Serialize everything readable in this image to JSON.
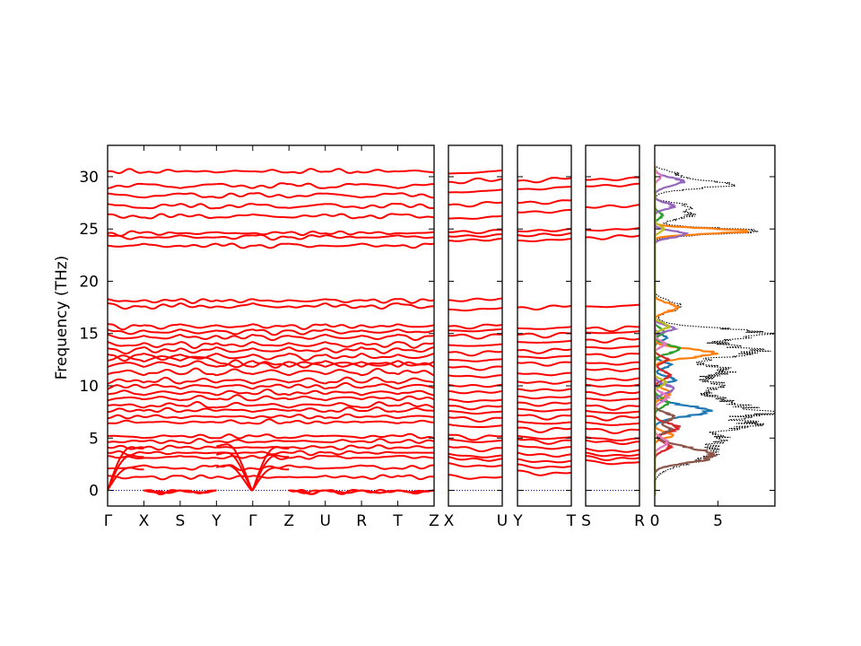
{
  "chart_data": {
    "type": "line",
    "ylabel": "Frequency (THz)",
    "ylim": [
      -1.5,
      33
    ],
    "yticks": [
      0,
      5,
      10,
      15,
      20,
      25,
      30
    ],
    "band_color": "#ff0000",
    "zero_line_color": "#0000cc",
    "panels": [
      {
        "id": "p1",
        "segments": [
          {
            "from": "Γ",
            "to": "X"
          },
          {
            "from": "X",
            "to": "S"
          },
          {
            "from": "S",
            "to": "Y"
          },
          {
            "from": "Y",
            "to": "Γ"
          },
          {
            "from": "Γ",
            "to": "Z"
          },
          {
            "from": "Z",
            "to": "U"
          },
          {
            "from": "U",
            "to": "R"
          },
          {
            "from": "R",
            "to": "T"
          },
          {
            "from": "T",
            "to": "Z"
          }
        ],
        "x_ticks": [
          "Γ",
          "X",
          "S",
          "Y",
          "Γ",
          "Z",
          "U",
          "R",
          "T",
          "Z"
        ],
        "bands_start": [
          0,
          0,
          0,
          1.4,
          2.1,
          3.3,
          3.6,
          4.1,
          4.6,
          5.2,
          6.4,
          6.9,
          7.5,
          8.1,
          8.6,
          9.2,
          9.7,
          10.2,
          11.1,
          11.8,
          12.4,
          13.0,
          13.6,
          14.2,
          14.9,
          15.4,
          15.9,
          17.9,
          18.3,
          23.4,
          24.4,
          24.6,
          26.4,
          27.4,
          28.4,
          28.9,
          30.5
        ],
        "bands_end": [
          0,
          0,
          0,
          1.3,
          2.4,
          3.1,
          3.6,
          4.1,
          4.7,
          5.0,
          6.5,
          7.0,
          7.6,
          7.9,
          8.7,
          9.1,
          9.8,
          10.3,
          11.0,
          11.8,
          12.3,
          13.1,
          13.7,
          14.1,
          14.8,
          15.3,
          15.8,
          17.6,
          18.2,
          23.6,
          24.2,
          24.7,
          26.1,
          27.0,
          28.0,
          29.3,
          30.4
        ]
      },
      {
        "id": "p2",
        "segments": [
          {
            "from": "X",
            "to": "U"
          }
        ],
        "x_ticks": [
          "X",
          "U"
        ],
        "bands": [
          1.5,
          2.6,
          3.2,
          3.5,
          4.2,
          4.9,
          5.3,
          6.3,
          7.0,
          7.6,
          8.1,
          8.7,
          9.5,
          10.1,
          11.0,
          11.8,
          12.5,
          13.2,
          13.9,
          14.8,
          15.3,
          15.7,
          17.3,
          18.2,
          23.9,
          24.3,
          24.7,
          26.0,
          27.3,
          28.5,
          29.5,
          30.3
        ]
      },
      {
        "id": "p3",
        "segments": [
          {
            "from": "Y",
            "to": "T"
          }
        ],
        "x_ticks": [
          "Y",
          "T"
        ],
        "bands": [
          1.9,
          2.5,
          3.0,
          3.6,
          4.3,
          4.9,
          5.2,
          6.0,
          6.6,
          7.2,
          7.8,
          8.4,
          9.0,
          9.7,
          10.4,
          11.2,
          12.2,
          12.8,
          13.4,
          14.2,
          14.9,
          15.5,
          17.5,
          23.9,
          24.4,
          24.8,
          26.6,
          27.5,
          28.8,
          29.6
        ]
      },
      {
        "id": "p4",
        "segments": [
          {
            "from": "S",
            "to": "R"
          }
        ],
        "x_ticks": [
          "S",
          "R"
        ],
        "bands": [
          2.9,
          3.3,
          3.6,
          4.0,
          4.8,
          5.1,
          5.9,
          6.5,
          7.1,
          7.6,
          8.1,
          8.8,
          9.4,
          10.1,
          10.7,
          11.6,
          12.2,
          13.0,
          13.7,
          14.4,
          15.1,
          15.5,
          17.6,
          24.2,
          24.9,
          27.1,
          29.1,
          29.7
        ]
      }
    ],
    "dos": {
      "xlim": [
        0,
        9.5
      ],
      "x_ticks": [
        0,
        5
      ],
      "total_color": "#000000",
      "total_style": "dotted",
      "peaks": [
        {
          "f": 3.5,
          "w": 0.9,
          "h": 4.5
        },
        {
          "f": 5.0,
          "w": 0.5,
          "h": 4.0
        },
        {
          "f": 6.3,
          "w": 0.5,
          "h": 7.5
        },
        {
          "f": 7.5,
          "w": 0.4,
          "h": 8.2
        },
        {
          "f": 8.5,
          "w": 0.5,
          "h": 5.5
        },
        {
          "f": 10.0,
          "w": 0.6,
          "h": 5.0
        },
        {
          "f": 11.5,
          "w": 0.5,
          "h": 5.5
        },
        {
          "f": 13.3,
          "w": 0.6,
          "h": 8.0
        },
        {
          "f": 15.0,
          "w": 0.5,
          "h": 8.5
        },
        {
          "f": 17.6,
          "w": 0.5,
          "h": 2.0
        },
        {
          "f": 24.8,
          "w": 0.3,
          "h": 8.3
        },
        {
          "f": 26.3,
          "w": 0.4,
          "h": 2.8
        },
        {
          "f": 27.2,
          "w": 0.3,
          "h": 2.5
        },
        {
          "f": 29.3,
          "w": 0.4,
          "h": 6.0
        },
        {
          "f": 30.3,
          "w": 0.3,
          "h": 1.5
        }
      ],
      "partials": [
        {
          "color": "#1f77b4",
          "peaks": [
            {
              "f": 7.6,
              "w": 0.5,
              "h": 4.2
            },
            {
              "f": 10.6,
              "w": 0.3,
              "h": 1.6
            },
            {
              "f": 12.0,
              "w": 0.3,
              "h": 1.2
            },
            {
              "f": 14.6,
              "w": 0.3,
              "h": 0.9
            }
          ]
        },
        {
          "color": "#ff7f0e",
          "peaks": [
            {
              "f": 13.1,
              "w": 0.4,
              "h": 4.8
            },
            {
              "f": 17.5,
              "w": 0.4,
              "h": 1.8
            },
            {
              "f": 24.8,
              "w": 0.25,
              "h": 7.5
            },
            {
              "f": 9.3,
              "w": 0.4,
              "h": 1.2
            },
            {
              "f": 5.3,
              "w": 0.3,
              "h": 1.4
            }
          ]
        },
        {
          "color": "#2ca02c",
          "peaks": [
            {
              "f": 13.5,
              "w": 0.4,
              "h": 1.9
            },
            {
              "f": 8.4,
              "w": 0.4,
              "h": 1.1
            },
            {
              "f": 26.3,
              "w": 0.3,
              "h": 0.6
            },
            {
              "f": 15.2,
              "w": 0.3,
              "h": 0.8
            }
          ]
        },
        {
          "color": "#d62728",
          "peaks": [
            {
              "f": 6.0,
              "w": 0.4,
              "h": 1.9
            },
            {
              "f": 11.0,
              "w": 0.4,
              "h": 1.2
            },
            {
              "f": 12.5,
              "w": 0.3,
              "h": 1.0
            },
            {
              "f": 4.2,
              "w": 0.4,
              "h": 1.2
            }
          ]
        },
        {
          "color": "#9467bd",
          "peaks": [
            {
              "f": 24.5,
              "w": 0.3,
              "h": 2.5
            },
            {
              "f": 27.2,
              "w": 0.3,
              "h": 1.5
            },
            {
              "f": 29.5,
              "w": 0.4,
              "h": 2.2
            },
            {
              "f": 15.5,
              "w": 0.3,
              "h": 1.5
            },
            {
              "f": 9.7,
              "w": 0.4,
              "h": 1.5
            }
          ]
        },
        {
          "color": "#8c564b",
          "peaks": [
            {
              "f": 3.6,
              "w": 0.6,
              "h": 3.8
            },
            {
              "f": 2.9,
              "w": 0.4,
              "h": 2.0
            },
            {
              "f": 7.0,
              "w": 0.4,
              "h": 1.5
            },
            {
              "f": 5.8,
              "w": 0.3,
              "h": 1.2
            }
          ]
        },
        {
          "color": "#e377c2",
          "peaks": [
            {
              "f": 4.6,
              "w": 0.4,
              "h": 1.0
            },
            {
              "f": 8.9,
              "w": 0.4,
              "h": 1.0
            },
            {
              "f": 14.0,
              "w": 0.3,
              "h": 0.8
            },
            {
              "f": 30.0,
              "w": 0.3,
              "h": 0.5
            }
          ]
        },
        {
          "color": "#bcbd22",
          "peaks": [
            {
              "f": 15.7,
              "w": 0.3,
              "h": 1.1
            },
            {
              "f": 10.3,
              "w": 0.3,
              "h": 0.9
            },
            {
              "f": 25.0,
              "w": 0.3,
              "h": 0.7
            }
          ]
        }
      ]
    }
  }
}
